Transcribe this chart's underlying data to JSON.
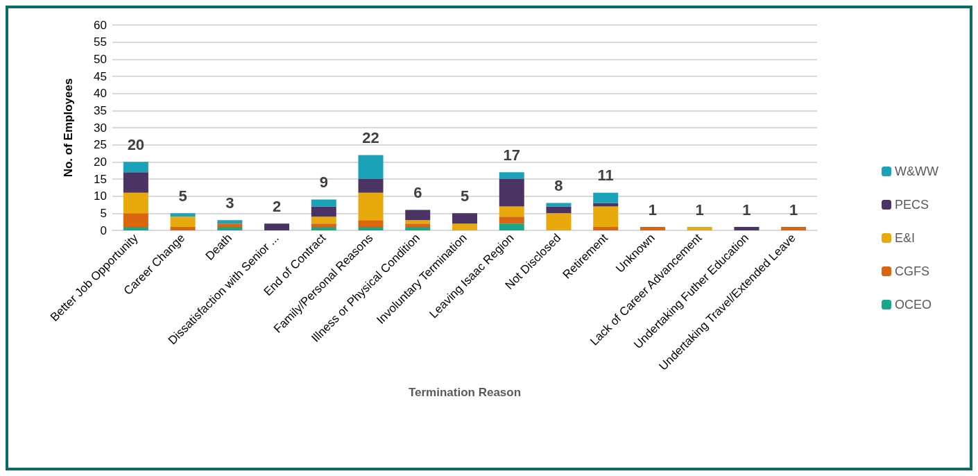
{
  "chart_data": {
    "type": "bar",
    "stacked": true,
    "xlabel": "Termination Reason",
    "ylabel": "No. of Employees",
    "categories": [
      "Better Job Opportunity",
      "Career Change",
      "Death",
      "Dissatisfaction with Senior ...",
      "End of Contract",
      "Family/Personal Reasons",
      "Illness or Physical Condition",
      "Involuntary Termination",
      "Leaving Isaac Region",
      "Not Disclosed",
      "Retirement",
      "Unknown",
      "Lack of Career Advancement",
      "Undertaking Futher Education",
      "Undertaking Travel/Extended Leave"
    ],
    "series": [
      {
        "name": "OCEO",
        "color": "#17a88a",
        "values": [
          1,
          0,
          1,
          0,
          1,
          1,
          1,
          0,
          2,
          0,
          0,
          0,
          0,
          0,
          0
        ]
      },
      {
        "name": "CGFS",
        "color": "#d9660f",
        "values": [
          4,
          1,
          1,
          0,
          1,
          2,
          1,
          0,
          2,
          0,
          1,
          1,
          0,
          0,
          1
        ]
      },
      {
        "name": "E&I",
        "color": "#e8a90c",
        "values": [
          6,
          3,
          0,
          0,
          2,
          8,
          1,
          2,
          3,
          5,
          6,
          0,
          1,
          0,
          0
        ]
      },
      {
        "name": "PECS",
        "color": "#4b3363",
        "values": [
          6,
          0,
          0,
          2,
          3,
          4,
          3,
          3,
          8,
          2,
          1,
          0,
          0,
          1,
          0
        ]
      },
      {
        "name": "W&WW",
        "color": "#1aa3b8",
        "values": [
          3,
          1,
          1,
          0,
          2,
          7,
          0,
          0,
          2,
          1,
          3,
          0,
          0,
          0,
          0
        ]
      }
    ],
    "totals": [
      "20",
      "5",
      "3",
      "2",
      "9",
      "22",
      "6",
      "5",
      "17",
      "8",
      "11",
      "1",
      "1",
      "1",
      "1"
    ],
    "ylim": [
      0,
      60
    ],
    "yticks": [
      0,
      5,
      10,
      15,
      20,
      25,
      30,
      35,
      40,
      45,
      50,
      55,
      60
    ],
    "grid": "y",
    "legend": "right"
  }
}
